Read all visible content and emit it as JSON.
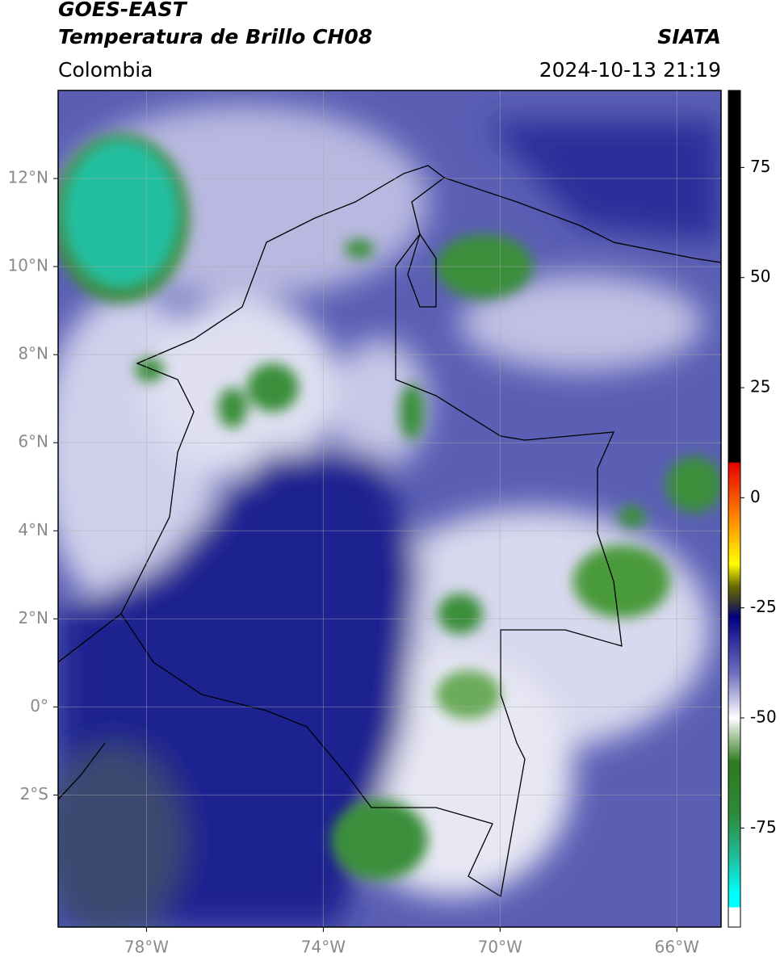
{
  "header": {
    "title": "GOES-EAST",
    "subtitle": "Temperatura de Brillo CH08",
    "region": "Colombia",
    "source": "SIATA",
    "datetime": "2024-10-13 21:19"
  },
  "map": {
    "xlim": [
      -80,
      -65
    ],
    "ylim": [
      -5,
      14
    ],
    "xticks": [
      {
        "value": -78,
        "label": "78°W"
      },
      {
        "value": -74,
        "label": "74°W"
      },
      {
        "value": -70,
        "label": "70°W"
      },
      {
        "value": -66,
        "label": "66°W"
      }
    ],
    "yticks": [
      {
        "value": 12,
        "label": "12°N"
      },
      {
        "value": 10,
        "label": "10°N"
      },
      {
        "value": 8,
        "label": "8°N"
      },
      {
        "value": 6,
        "label": "6°N"
      },
      {
        "value": 4,
        "label": "4°N"
      },
      {
        "value": 2,
        "label": "2°N"
      },
      {
        "value": 0,
        "label": "0°"
      },
      {
        "value": -2,
        "label": "2°S"
      }
    ],
    "grid": true
  },
  "colorbar": {
    "lim": [
      -97.5,
      92.5
    ],
    "ticks": [
      75,
      50,
      25,
      0,
      -25,
      -50,
      -75
    ],
    "stops": [
      {
        "value": 92.5,
        "color": "#000000"
      },
      {
        "value": 8,
        "color": "#000000"
      },
      {
        "value": 8,
        "color": "#e60000"
      },
      {
        "value": -5,
        "color": "#ff8c00"
      },
      {
        "value": -15,
        "color": "#ffff00"
      },
      {
        "value": -20,
        "color": "#6b6b00"
      },
      {
        "value": -24,
        "color": "#333333"
      },
      {
        "value": -27,
        "color": "#000080"
      },
      {
        "value": -40,
        "color": "#7070c0"
      },
      {
        "value": -50,
        "color": "#ffffff"
      },
      {
        "value": -60,
        "color": "#2d7a1e"
      },
      {
        "value": -72,
        "color": "#2d8a3a"
      },
      {
        "value": -82,
        "color": "#20c0a0"
      },
      {
        "value": -90,
        "color": "#00ffff"
      },
      {
        "value": -93,
        "color": "#00ffff"
      },
      {
        "value": -93,
        "color": "#ffffff"
      },
      {
        "value": -97.5,
        "color": "#ffffff"
      }
    ]
  }
}
